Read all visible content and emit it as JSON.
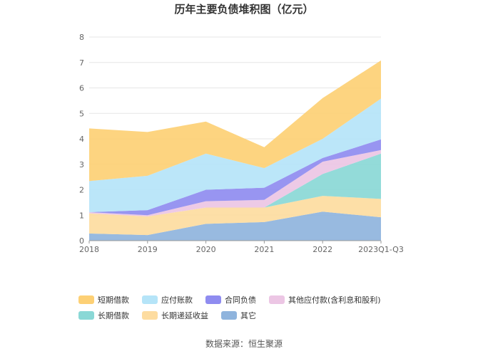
{
  "title": "历年主要负债堆积图（亿元）",
  "source": "数据来源：恒生聚源",
  "chart_data": {
    "type": "area",
    "stacked": true,
    "categories": [
      "2018",
      "2019",
      "2020",
      "2021",
      "2022",
      "2023Q1-Q3"
    ],
    "ylim": [
      0,
      8
    ],
    "yticks": [
      "0",
      "1",
      "2",
      "3",
      "4",
      "5",
      "6",
      "7",
      "8"
    ],
    "grid": true,
    "legend_position": "bottom",
    "series": [
      {
        "name": "其它",
        "color": "#8fb4dd",
        "values": [
          0.28,
          0.22,
          0.66,
          0.73,
          1.14,
          0.92
        ]
      },
      {
        "name": "长期递延收益",
        "color": "#fddca0",
        "values": [
          0.79,
          0.73,
          0.64,
          0.57,
          0.62,
          0.72
        ]
      },
      {
        "name": "长期借款",
        "color": "#8ad8d6",
        "values": [
          0.0,
          0.0,
          0.0,
          0.0,
          0.86,
          1.78
        ]
      },
      {
        "name": "其他应付款(含利息和股利)",
        "color": "#ecc6e4",
        "values": [
          0.05,
          0.05,
          0.25,
          0.3,
          0.48,
          0.14
        ]
      },
      {
        "name": "合同负债",
        "color": "#8f8cf0",
        "values": [
          0.0,
          0.2,
          0.45,
          0.48,
          0.15,
          0.42
        ]
      },
      {
        "name": "应付账款",
        "color": "#b5e4f8",
        "values": [
          1.22,
          1.35,
          1.42,
          0.77,
          0.75,
          1.6
        ]
      },
      {
        "name": "短期借款",
        "color": "#fdd075",
        "values": [
          2.07,
          1.72,
          1.26,
          0.82,
          1.6,
          1.5
        ]
      }
    ],
    "legend_order": [
      "短期借款",
      "应付账款",
      "合同负债",
      "其他应付款(含利息和股利)",
      "长期借款",
      "长期递延收益",
      "其它"
    ]
  }
}
